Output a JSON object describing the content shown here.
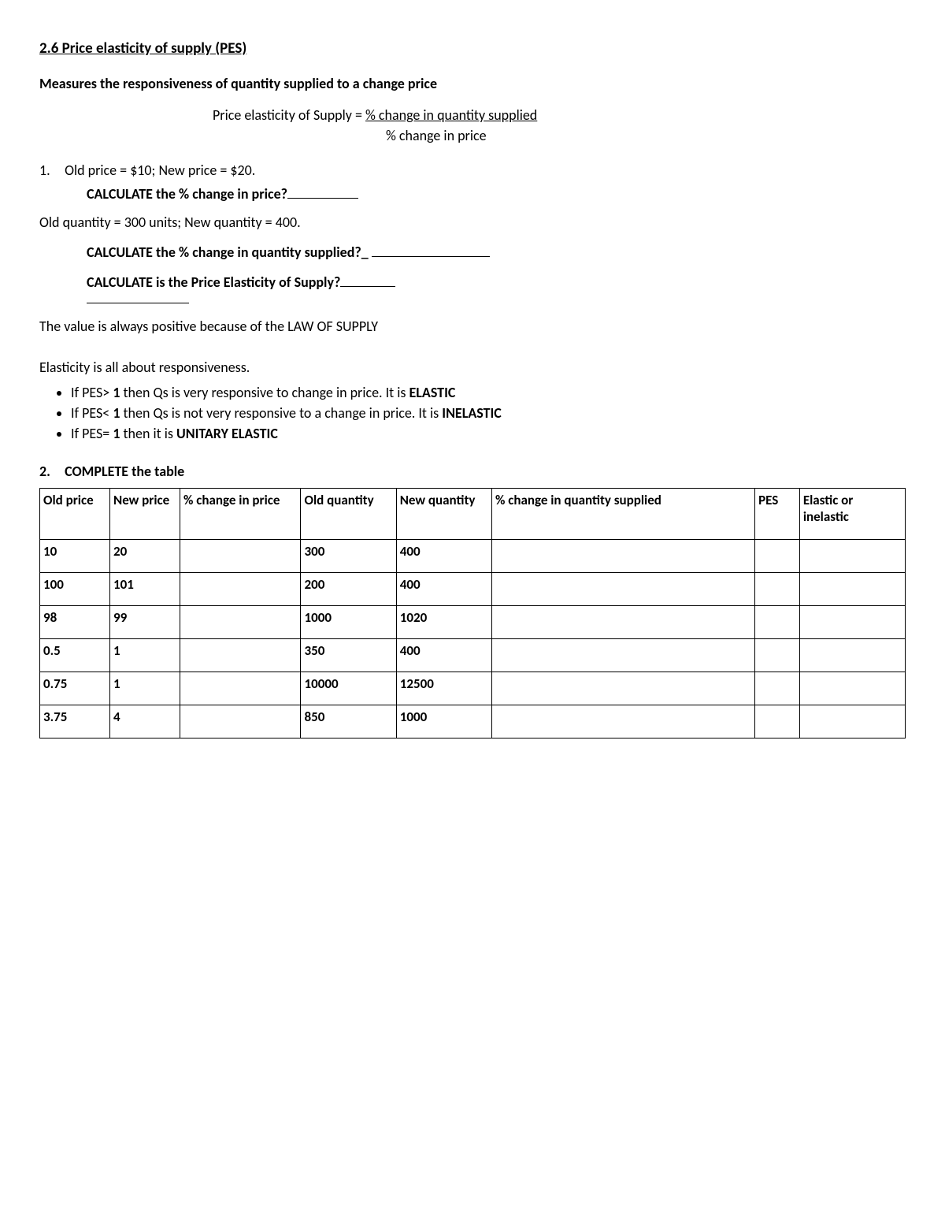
{
  "title": "2.6 Price elasticity of supply (PES)",
  "subtitle": "Measures the responsiveness of quantity supplied to a change price",
  "formula_lhs": "Price elasticity of Supply = ",
  "formula_num": "% change in quantity supplied",
  "formula_den": "% change in price",
  "q1_number": "1.",
  "q1_line1": "Old price = $10; New price = $20.",
  "q1_calc1": "CALCULATE the % change in price?",
  "q1_line2": "Old quantity = 300 units; New quantity = 400.",
  "q1_calc2": "CALCULATE the % change in quantity supplied?_",
  "q1_calc3": "CALCULATE is the Price Elasticity of Supply?",
  "law_text": "The value is always positive because of the LAW OF SUPPLY",
  "elasticity_intro": "Elasticity is all about responsiveness.",
  "bullet1_pre": "If PES> ",
  "bullet1_bold1": "1",
  "bullet1_mid": " then Qs is very responsive to change in price. It is ",
  "bullet1_bold2": "ELASTIC",
  "bullet2_pre": "If PES< ",
  "bullet2_bold1": "1",
  "bullet2_mid": " then Qs is not very responsive to a change in price. It is ",
  "bullet2_bold2": "INELASTIC",
  "bullet3_pre": "If PES= ",
  "bullet3_bold1": "1",
  "bullet3_mid": " then it is ",
  "bullet3_bold2": "UNITARY ELASTIC",
  "q2_number": "2.",
  "q2_title": "COMPLETE the table",
  "table": {
    "columns": [
      "Old price",
      "New price",
      "% change in price",
      "Old quantity",
      "New quantity",
      "% change in quantity supplied",
      "PES",
      "Elastic or inelastic"
    ],
    "rows": [
      [
        "10",
        "20",
        "",
        "300",
        "400",
        "",
        "",
        ""
      ],
      [
        "100",
        "101",
        "",
        "200",
        "400",
        "",
        "",
        ""
      ],
      [
        "98",
        "99",
        "",
        "1000",
        "1020",
        "",
        "",
        ""
      ],
      [
        "0.5",
        "1",
        "",
        "350",
        "400",
        "",
        "",
        ""
      ],
      [
        "0.75",
        "1",
        "",
        "10000",
        "12500",
        "",
        "",
        ""
      ],
      [
        "3.75",
        "4",
        "",
        "850",
        "1000",
        "",
        "",
        ""
      ]
    ]
  }
}
